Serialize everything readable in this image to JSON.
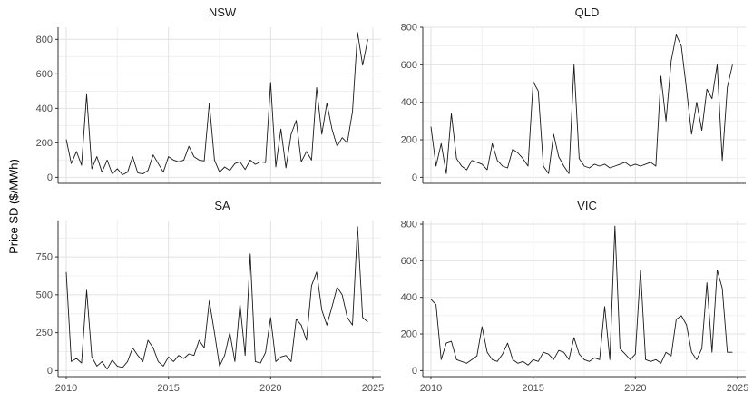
{
  "figure": {
    "ylabel": "Price SD ($/MWh)",
    "xticks": [
      2010,
      2015,
      2020,
      2025
    ],
    "x_minor": [
      2012.5,
      2017.5,
      2022.5
    ],
    "xlim": [
      2009.6,
      2025.4
    ],
    "colors": {
      "line": "#1a1a1a",
      "grid_major": "#e2e2e2",
      "grid_minor": "#f0f0f0",
      "axis": "#333333",
      "tick_text": "#4d4d4d",
      "background": "#ffffff"
    }
  },
  "chart_data": [
    {
      "type": "line",
      "title": "NSW",
      "x": {
        "start": 2010,
        "step": 0.25
      },
      "values": [
        220,
        80,
        150,
        70,
        480,
        50,
        120,
        30,
        100,
        20,
        50,
        15,
        30,
        120,
        25,
        20,
        40,
        130,
        80,
        30,
        120,
        100,
        90,
        100,
        180,
        120,
        100,
        95,
        430,
        100,
        30,
        60,
        40,
        80,
        90,
        45,
        100,
        75,
        90,
        85,
        550,
        60,
        280,
        55,
        250,
        330,
        90,
        150,
        100,
        520,
        250,
        430,
        280,
        180,
        230,
        200,
        380,
        840,
        650,
        800
      ],
      "ylim": [
        0,
        870
      ],
      "yticks": [
        0,
        200,
        400,
        600,
        800
      ]
    },
    {
      "type": "line",
      "title": "QLD",
      "x": {
        "start": 2010,
        "step": 0.25
      },
      "values": [
        270,
        60,
        180,
        20,
        340,
        100,
        60,
        40,
        90,
        80,
        70,
        40,
        180,
        90,
        60,
        50,
        150,
        130,
        100,
        60,
        510,
        460,
        60,
        20,
        230,
        110,
        60,
        20,
        600,
        100,
        60,
        50,
        70,
        60,
        70,
        50,
        60,
        70,
        80,
        60,
        70,
        60,
        70,
        80,
        60,
        540,
        300,
        620,
        760,
        700,
        470,
        230,
        400,
        250,
        470,
        420,
        600,
        90,
        480,
        600
      ],
      "ylim": [
        0,
        800
      ],
      "yticks": [
        0,
        200,
        400,
        600,
        800
      ]
    },
    {
      "type": "line",
      "title": "SA",
      "x": {
        "start": 2010,
        "step": 0.25
      },
      "values": [
        650,
        60,
        80,
        50,
        530,
        90,
        30,
        60,
        10,
        70,
        30,
        20,
        60,
        150,
        100,
        60,
        200,
        150,
        60,
        30,
        90,
        60,
        100,
        80,
        110,
        100,
        200,
        150,
        460,
        250,
        30,
        100,
        250,
        60,
        440,
        100,
        770,
        60,
        50,
        120,
        350,
        60,
        90,
        100,
        60,
        340,
        300,
        200,
        560,
        650,
        400,
        300,
        420,
        550,
        500,
        350,
        300,
        950,
        350,
        320
      ],
      "ylim": [
        0,
        990
      ],
      "yticks": [
        0,
        250,
        500,
        750
      ]
    },
    {
      "type": "line",
      "title": "VIC",
      "x": {
        "start": 2010,
        "step": 0.25
      },
      "values": [
        390,
        360,
        60,
        150,
        160,
        60,
        50,
        40,
        60,
        80,
        240,
        100,
        60,
        50,
        90,
        150,
        60,
        40,
        50,
        30,
        60,
        50,
        100,
        90,
        60,
        110,
        100,
        60,
        180,
        90,
        60,
        50,
        70,
        60,
        350,
        60,
        790,
        120,
        90,
        60,
        90,
        550,
        60,
        50,
        60,
        40,
        100,
        80,
        280,
        300,
        250,
        100,
        60,
        120,
        480,
        100,
        550,
        450,
        100,
        100
      ],
      "ylim": [
        0,
        820
      ],
      "yticks": [
        0,
        200,
        400,
        600,
        800
      ]
    }
  ]
}
